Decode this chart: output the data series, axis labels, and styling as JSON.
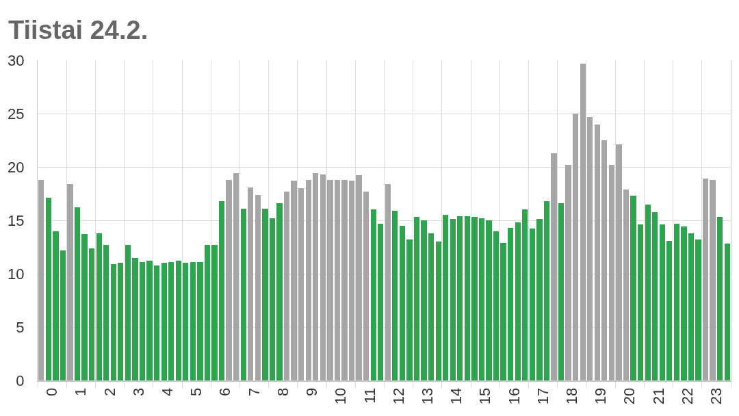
{
  "chart_data": {
    "type": "bar",
    "title": "Tiistai 24.2.",
    "x": [
      0.125,
      0.375,
      0.625,
      0.875,
      1.125,
      1.375,
      1.625,
      1.875,
      2.125,
      2.375,
      2.625,
      2.875,
      3.125,
      3.375,
      3.625,
      3.875,
      4.125,
      4.375,
      4.625,
      4.875,
      5.125,
      5.375,
      5.625,
      5.875,
      6.125,
      6.375,
      6.625,
      6.875,
      7.125,
      7.375,
      7.625,
      7.875,
      8.125,
      8.375,
      8.625,
      8.875,
      9.125,
      9.375,
      9.625,
      9.875,
      10.125,
      10.375,
      10.625,
      10.875,
      11.125,
      11.375,
      11.625,
      11.875,
      12.125,
      12.375,
      12.625,
      12.875,
      13.125,
      13.375,
      13.625,
      13.875,
      14.125,
      14.375,
      14.625,
      14.875,
      15.125,
      15.375,
      15.625,
      15.875,
      16.125,
      16.375,
      16.625,
      16.875,
      17.125,
      17.375,
      17.625,
      17.875,
      18.125,
      18.375,
      18.625,
      18.875,
      19.125,
      19.375,
      19.625,
      19.875,
      20.125,
      20.375,
      20.625,
      20.875,
      21.125,
      21.375,
      21.625,
      21.875,
      22.125,
      22.375,
      22.625,
      22.875,
      23.125,
      23.375,
      23.625,
      23.875
    ],
    "values": [
      18.8,
      17.1,
      14.0,
      12.2,
      18.4,
      16.2,
      13.7,
      12.4,
      13.8,
      12.7,
      10.9,
      11.0,
      12.7,
      11.5,
      11.1,
      11.2,
      10.8,
      11.0,
      11.1,
      11.2,
      11.0,
      11.1,
      11.1,
      12.7,
      12.7,
      16.8,
      18.8,
      19.4,
      16.1,
      18.1,
      17.4,
      16.1,
      15.2,
      16.6,
      17.7,
      18.7,
      18.0,
      18.8,
      19.4,
      19.3,
      18.8,
      18.8,
      18.8,
      18.7,
      19.2,
      17.7,
      16.0,
      14.7,
      18.4,
      15.9,
      14.5,
      13.2,
      15.3,
      15.0,
      13.8,
      13.0,
      15.5,
      15.1,
      15.4,
      15.4,
      15.3,
      15.2,
      15.0,
      14.0,
      12.9,
      14.3,
      14.8,
      16.0,
      14.2,
      15.1,
      16.8,
      21.3,
      16.6,
      20.2,
      25.0,
      29.7,
      24.7,
      24.0,
      22.5,
      20.2,
      22.1,
      17.9,
      17.3,
      14.6,
      16.5,
      15.8,
      14.6,
      13.1,
      14.7,
      14.4,
      13.8,
      13.2,
      18.9,
      18.8,
      15.3,
      12.8
    ],
    "colors": [
      "#a6a6a6",
      "#2ea44f",
      "#2ea44f",
      "#2ea44f",
      "#a6a6a6",
      "#2ea44f",
      "#2ea44f",
      "#2ea44f",
      "#2ea44f",
      "#2ea44f",
      "#2ea44f",
      "#2ea44f",
      "#2ea44f",
      "#2ea44f",
      "#2ea44f",
      "#2ea44f",
      "#2ea44f",
      "#2ea44f",
      "#2ea44f",
      "#2ea44f",
      "#2ea44f",
      "#2ea44f",
      "#2ea44f",
      "#2ea44f",
      "#2ea44f",
      "#2ea44f",
      "#a6a6a6",
      "#a6a6a6",
      "#2ea44f",
      "#a6a6a6",
      "#a6a6a6",
      "#2ea44f",
      "#2ea44f",
      "#2ea44f",
      "#a6a6a6",
      "#a6a6a6",
      "#a6a6a6",
      "#a6a6a6",
      "#a6a6a6",
      "#a6a6a6",
      "#a6a6a6",
      "#a6a6a6",
      "#a6a6a6",
      "#a6a6a6",
      "#a6a6a6",
      "#a6a6a6",
      "#2ea44f",
      "#2ea44f",
      "#a6a6a6",
      "#2ea44f",
      "#2ea44f",
      "#2ea44f",
      "#2ea44f",
      "#2ea44f",
      "#2ea44f",
      "#2ea44f",
      "#2ea44f",
      "#2ea44f",
      "#2ea44f",
      "#2ea44f",
      "#2ea44f",
      "#2ea44f",
      "#2ea44f",
      "#2ea44f",
      "#2ea44f",
      "#2ea44f",
      "#2ea44f",
      "#2ea44f",
      "#2ea44f",
      "#2ea44f",
      "#2ea44f",
      "#a6a6a6",
      "#2ea44f",
      "#a6a6a6",
      "#a6a6a6",
      "#a6a6a6",
      "#a6a6a6",
      "#a6a6a6",
      "#a6a6a6",
      "#a6a6a6",
      "#a6a6a6",
      "#a6a6a6",
      "#2ea44f",
      "#2ea44f",
      "#2ea44f",
      "#2ea44f",
      "#2ea44f",
      "#2ea44f",
      "#2ea44f",
      "#2ea44f",
      "#2ea44f",
      "#2ea44f",
      "#a6a6a6",
      "#a6a6a6",
      "#2ea44f",
      "#2ea44f"
    ],
    "xlim": [
      0,
      24
    ],
    "xticks": [
      {
        "value": 0,
        "label": null
      },
      {
        "value": 0.5,
        "label": "0"
      },
      {
        "value": 1,
        "label": null
      },
      {
        "value": 1.5,
        "label": "1"
      },
      {
        "value": 2,
        "label": null
      },
      {
        "value": 2.5,
        "label": "2"
      },
      {
        "value": 3,
        "label": null
      },
      {
        "value": 3.5,
        "label": "3"
      },
      {
        "value": 4,
        "label": null
      },
      {
        "value": 4.5,
        "label": "4"
      },
      {
        "value": 5,
        "label": null
      },
      {
        "value": 5.5,
        "label": "5"
      },
      {
        "value": 6,
        "label": null
      },
      {
        "value": 6.5,
        "label": "6"
      },
      {
        "value": 7,
        "label": null
      },
      {
        "value": 7.5,
        "label": "7"
      },
      {
        "value": 8,
        "label": null
      },
      {
        "value": 8.5,
        "label": "8"
      },
      {
        "value": 9,
        "label": null
      },
      {
        "value": 9.5,
        "label": "9"
      },
      {
        "value": 10,
        "label": null
      },
      {
        "value": 10.5,
        "label": "10"
      },
      {
        "value": 11,
        "label": null
      },
      {
        "value": 11.5,
        "label": "11"
      },
      {
        "value": 12,
        "label": null
      },
      {
        "value": 12.5,
        "label": "12"
      },
      {
        "value": 13,
        "label": null
      },
      {
        "value": 13.5,
        "label": "13"
      },
      {
        "value": 14,
        "label": null
      },
      {
        "value": 14.5,
        "label": "14"
      },
      {
        "value": 15,
        "label": null
      },
      {
        "value": 15.5,
        "label": "15"
      },
      {
        "value": 16,
        "label": null
      },
      {
        "value": 16.5,
        "label": "16"
      },
      {
        "value": 17,
        "label": null
      },
      {
        "value": 17.5,
        "label": "17"
      },
      {
        "value": 18,
        "label": null
      },
      {
        "value": 18.5,
        "label": "18"
      },
      {
        "value": 19,
        "label": null
      },
      {
        "value": 19.5,
        "label": "19"
      },
      {
        "value": 20,
        "label": null
      },
      {
        "value": 20.5,
        "label": "20"
      },
      {
        "value": 21,
        "label": null
      },
      {
        "value": 21.5,
        "label": "21"
      },
      {
        "value": 22,
        "label": null
      },
      {
        "value": 22.5,
        "label": "22"
      },
      {
        "value": 23,
        "label": null
      },
      {
        "value": 23.5,
        "label": "23"
      },
      {
        "value": 24,
        "label": null
      }
    ],
    "ylim": [
      0,
      30
    ],
    "yticks": [
      0,
      5,
      10,
      15,
      20,
      25,
      30
    ],
    "grid": true
  }
}
